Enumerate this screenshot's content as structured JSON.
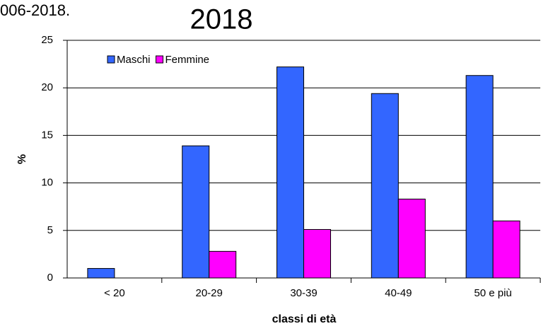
{
  "chart_data": {
    "type": "bar",
    "subtitle": "006-2018.",
    "title": "2018",
    "x_label": "classi di età",
    "y_label": "%",
    "categories": [
      "< 20",
      "20-29",
      "30-39",
      "40-49",
      "50 e più"
    ],
    "series": [
      {
        "name": "Maschi",
        "color": "#3366ff",
        "values": [
          1.0,
          13.9,
          22.2,
          19.4,
          21.3
        ]
      },
      {
        "name": "Femmine",
        "color": "#ff00ff",
        "values": [
          0,
          2.8,
          5.1,
          8.3,
          6.0
        ]
      }
    ],
    "ylim": [
      0,
      25
    ],
    "yticks": [
      0,
      5,
      10,
      15,
      20,
      25
    ],
    "grid": true,
    "legend": "top-left"
  }
}
